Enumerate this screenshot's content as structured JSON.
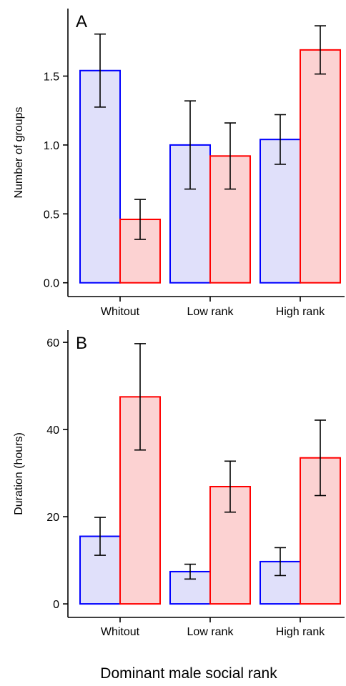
{
  "chart_data": [
    {
      "type": "bar",
      "panel_label": "A",
      "ylabel": "Number of groups",
      "categories": [
        "Whitout",
        "Low rank",
        "High rank"
      ],
      "series": [
        {
          "color": "#0000ff",
          "fill": "#e0e0fa",
          "values": [
            1.54,
            1.0,
            1.04
          ],
          "errors": [
            0.265,
            0.32,
            0.18
          ]
        },
        {
          "color": "#ff0000",
          "fill": "#fcd2d2",
          "values": [
            0.46,
            0.92,
            1.69
          ],
          "errors": [
            0.145,
            0.24,
            0.175
          ]
        }
      ],
      "ylim": [
        -0.1,
        1.99
      ],
      "yticks": [
        {
          "value": 0,
          "label": "0.0"
        },
        0.5,
        {
          "value": 1,
          "label": "1.0"
        },
        1.5
      ]
    },
    {
      "type": "bar",
      "panel_label": "B",
      "ylabel": "Duration (hours)",
      "categories": [
        "Whitout",
        "Low rank",
        "High rank"
      ],
      "series": [
        {
          "color": "#0000ff",
          "fill": "#e0e0fa",
          "values": [
            15.5,
            7.4,
            9.7
          ],
          "errors": [
            4.35,
            1.7,
            3.2
          ]
        },
        {
          "color": "#ff0000",
          "fill": "#fcd2d2",
          "values": [
            47.5,
            26.9,
            33.5
          ],
          "errors": [
            12.2,
            5.85,
            8.65
          ]
        }
      ],
      "ylim": [
        -3.1,
        62.8
      ],
      "yticks": [
        0,
        20,
        40,
        60
      ]
    }
  ],
  "xlabel": "Dominant male social rank"
}
